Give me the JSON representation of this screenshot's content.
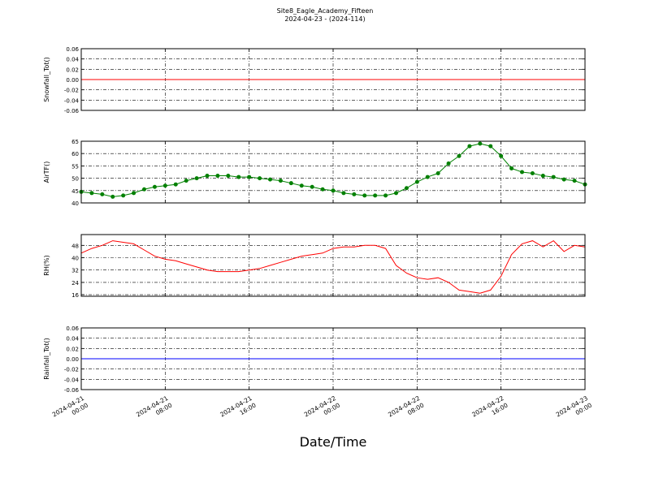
{
  "title": "Site8_Eagle_Academy_Fifteen",
  "subtitle": "2024-04-23 - (2024-114)",
  "xlabel": "Date/Time",
  "x_axis": {
    "xlim": [
      "2024-04-21 00:00",
      "2024-04-23 00:00"
    ],
    "xticks": [
      {
        "value": "2024-04-21 00:00",
        "label": [
          "2024-04-21",
          "00:00"
        ]
      },
      {
        "value": "2024-04-21 08:00",
        "label": [
          "2024-04-21",
          "08:00"
        ]
      },
      {
        "value": "2024-04-21 16:00",
        "label": [
          "2024-04-21",
          "16:00"
        ]
      },
      {
        "value": "2024-04-22 00:00",
        "label": [
          "2024-04-22",
          "00:00"
        ]
      },
      {
        "value": "2024-04-22 08:00",
        "label": [
          "2024-04-22",
          "08:00"
        ]
      },
      {
        "value": "2024-04-22 16:00",
        "label": [
          "2024-04-22",
          "16:00"
        ]
      },
      {
        "value": "2024-04-23 00:00",
        "label": [
          "2024-04-23",
          "00:00"
        ]
      }
    ]
  },
  "chart_data": [
    {
      "type": "line",
      "ylabel": "Snowfall_Tot()",
      "ylim": [
        -0.06,
        0.06
      ],
      "yticks": [
        -0.06,
        -0.04,
        -0.02,
        {
          "value": 0,
          "label": "0.00"
        },
        0.02,
        0.04,
        0.06
      ],
      "grid": true,
      "x": [
        "2024-04-21 00:00",
        "2024-04-23 00:00"
      ],
      "series": [
        {
          "color": "#ff0000",
          "values": [
            0,
            0
          ]
        }
      ]
    },
    {
      "type": "line",
      "ylabel": "AirTF()",
      "ylim": [
        40,
        65
      ],
      "yticks": [
        40,
        45,
        50,
        55,
        60,
        65
      ],
      "grid": true,
      "marker": true,
      "x": [
        "2024-04-21 00:00",
        "2024-04-21 01:00",
        "2024-04-21 02:00",
        "2024-04-21 03:00",
        "2024-04-21 04:00",
        "2024-04-21 05:00",
        "2024-04-21 06:00",
        "2024-04-21 07:00",
        "2024-04-21 08:00",
        "2024-04-21 09:00",
        "2024-04-21 10:00",
        "2024-04-21 11:00",
        "2024-04-21 12:00",
        "2024-04-21 13:00",
        "2024-04-21 14:00",
        "2024-04-21 15:00",
        "2024-04-21 16:00",
        "2024-04-21 17:00",
        "2024-04-21 18:00",
        "2024-04-21 19:00",
        "2024-04-21 20:00",
        "2024-04-21 21:00",
        "2024-04-21 22:00",
        "2024-04-21 23:00",
        "2024-04-22 00:00",
        "2024-04-22 01:00",
        "2024-04-22 02:00",
        "2024-04-22 03:00",
        "2024-04-22 04:00",
        "2024-04-22 05:00",
        "2024-04-22 06:00",
        "2024-04-22 07:00",
        "2024-04-22 08:00",
        "2024-04-22 09:00",
        "2024-04-22 10:00",
        "2024-04-22 11:00",
        "2024-04-22 12:00",
        "2024-04-22 13:00",
        "2024-04-22 14:00",
        "2024-04-22 15:00",
        "2024-04-22 16:00",
        "2024-04-22 17:00",
        "2024-04-22 18:00",
        "2024-04-22 19:00",
        "2024-04-22 20:00",
        "2024-04-22 21:00",
        "2024-04-22 22:00",
        "2024-04-22 23:00",
        "2024-04-23 00:00"
      ],
      "series": [
        {
          "color": "#008000",
          "values": [
            44.5,
            44,
            43.5,
            42.5,
            43,
            44,
            45.5,
            46.5,
            47,
            47.5,
            49,
            50,
            51,
            51,
            51,
            50.5,
            50.5,
            50,
            49.5,
            49,
            48,
            47,
            46.5,
            45.5,
            45,
            44,
            43.5,
            43,
            43,
            43,
            44,
            46,
            48.5,
            50.5,
            52,
            56,
            59,
            63,
            64,
            63,
            59,
            54,
            52.5,
            52,
            51,
            50.5,
            49.5,
            49,
            47.5
          ]
        }
      ]
    },
    {
      "type": "line",
      "ylabel": "RH(%)",
      "ylim": [
        15,
        55
      ],
      "yticks": [
        16,
        24,
        32,
        40,
        48
      ],
      "grid": true,
      "x": [
        "2024-04-21 00:00",
        "2024-04-21 01:00",
        "2024-04-21 02:00",
        "2024-04-21 03:00",
        "2024-04-21 04:00",
        "2024-04-21 05:00",
        "2024-04-21 06:00",
        "2024-04-21 07:00",
        "2024-04-21 08:00",
        "2024-04-21 09:00",
        "2024-04-21 10:00",
        "2024-04-21 11:00",
        "2024-04-21 12:00",
        "2024-04-21 13:00",
        "2024-04-21 14:00",
        "2024-04-21 15:00",
        "2024-04-21 16:00",
        "2024-04-21 17:00",
        "2024-04-21 18:00",
        "2024-04-21 19:00",
        "2024-04-21 20:00",
        "2024-04-21 21:00",
        "2024-04-21 22:00",
        "2024-04-21 23:00",
        "2024-04-22 00:00",
        "2024-04-22 01:00",
        "2024-04-22 02:00",
        "2024-04-22 03:00",
        "2024-04-22 04:00",
        "2024-04-22 05:00",
        "2024-04-22 06:00",
        "2024-04-22 07:00",
        "2024-04-22 08:00",
        "2024-04-22 09:00",
        "2024-04-22 10:00",
        "2024-04-22 11:00",
        "2024-04-22 12:00",
        "2024-04-22 13:00",
        "2024-04-22 14:00",
        "2024-04-22 15:00",
        "2024-04-22 16:00",
        "2024-04-22 17:00",
        "2024-04-22 18:00",
        "2024-04-22 19:00",
        "2024-04-22 20:00",
        "2024-04-22 21:00",
        "2024-04-22 22:00",
        "2024-04-22 23:00",
        "2024-04-23 00:00"
      ],
      "series": [
        {
          "color": "#ff0000",
          "values": [
            43,
            46,
            48,
            51,
            50,
            49,
            45,
            41,
            39,
            38,
            36,
            34,
            32,
            31,
            31,
            31,
            32,
            33,
            35,
            37,
            39,
            41,
            42,
            43,
            46,
            47,
            47,
            48,
            48,
            46,
            35,
            30,
            27,
            26,
            27,
            24,
            19,
            18,
            17,
            19,
            28,
            42,
            49,
            51,
            47,
            51,
            44,
            48,
            47
          ]
        }
      ]
    },
    {
      "type": "line",
      "ylabel": "Rainfall_Tot()",
      "ylim": [
        -0.06,
        0.06
      ],
      "yticks": [
        -0.06,
        -0.04,
        -0.02,
        {
          "value": 0,
          "label": "0.00"
        },
        0.02,
        0.04,
        0.06
      ],
      "grid": true,
      "x": [
        "2024-04-21 00:00",
        "2024-04-23 00:00"
      ],
      "series": [
        {
          "color": "#0000ff",
          "values": [
            0,
            0
          ]
        }
      ]
    }
  ]
}
